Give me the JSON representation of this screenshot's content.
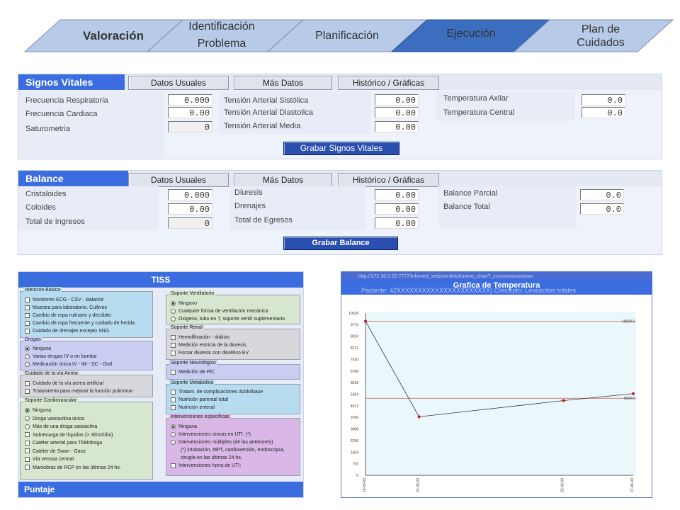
{
  "steps": [
    {
      "label": "Valoración",
      "bold": true
    },
    {
      "label": "Identificación\nProblema",
      "bold": false
    },
    {
      "label": "Planificación",
      "bold": false
    },
    {
      "label": "Ejecución",
      "bold": false
    },
    {
      "label": "Plan de\nCuidados",
      "bold": false
    }
  ],
  "signos": {
    "title": "Signos Vitales",
    "tabs": [
      "Datos Usuales",
      "Más Datos",
      "Histórico / Gráficas"
    ],
    "col1": [
      {
        "label": "Frecuencia Respiratoria",
        "value": "0.000"
      },
      {
        "label": "Frecuencia Cardiaca",
        "value": "0.00"
      },
      {
        "label": "Saturometria",
        "value": "0"
      }
    ],
    "col2": [
      {
        "label": "Tensión Arterial Sistólica",
        "value": "0.00"
      },
      {
        "label": "Tensión Arterial Diastolica",
        "value": "0.00"
      },
      {
        "label": "Tensión Arterial Media",
        "value": "0.00"
      }
    ],
    "col3": [
      {
        "label": "Temperatura Axilar",
        "value": "0.0"
      },
      {
        "label": "Temperatura Central",
        "value": "0.0"
      }
    ],
    "save": "Grabar Signos Vitales"
  },
  "balance": {
    "title": "Balance",
    "tabs": [
      "Datos Usuales",
      "Más Datos",
      "Histórico / Gráficas"
    ],
    "col1": [
      {
        "label": "Cristaloides",
        "value": "0.000"
      },
      {
        "label": "Coloides",
        "value": "0.00"
      },
      {
        "label": "Total de Ingresos",
        "value": "0"
      }
    ],
    "col2": [
      {
        "label": "Diuresis",
        "value": "0.00"
      },
      {
        "label": "Drenajes",
        "value": "0.00"
      },
      {
        "label": "Total de Egresos",
        "value": "0.00"
      }
    ],
    "col3": [
      {
        "label": "Balance Parcial",
        "value": "0.0"
      },
      {
        "label": "Balance Total",
        "value": "0.0"
      }
    ],
    "save_overlay": "Grabar Balance",
    "save_hidden": "Grabar Balance"
  },
  "tiss": {
    "title": "TISS",
    "footer": "Puntaje",
    "left_groups": [
      {
        "title": "Atención Básica",
        "color": "#b7dcef",
        "type": "check",
        "options": [
          "Monitoreo ECG - CSV - Balance",
          "Muestra para laboratorio. Cultivos",
          "Cambio de ropa rutinario y decúbito",
          "Cambio de ropa frecuente y cuidado de herida",
          "Cuidado de drenajes excepto SNG"
        ]
      },
      {
        "title": "Drogas",
        "color": "#c9cdf2",
        "type": "radio",
        "selected": 0,
        "options": [
          "Ninguna",
          "Varias drogas IV o en bomba",
          "Medicación única IV - IM - SC - Oral"
        ]
      },
      {
        "title": "Cuidado de la vía Aerea",
        "color": "#d8d8dc",
        "type": "check",
        "options": [
          "Cuidado de la vía aerea artificial",
          "Tratamiento para mejorar la función pulmonar"
        ]
      },
      {
        "title": "Soporte Cardiovascular",
        "color": "#d6e6cf",
        "type": "mixed",
        "selected": 0,
        "options": [
          "Ninguna",
          "Droga vasoactiva única",
          "Más de una droga vasoactiva",
          "Sobrecarga de líquidos (> 3l/m2/día)",
          "Catéter arterial para TAM/droga",
          "Catéter de Swan - Ganz",
          "Vía venosa central",
          "Maniobras de RCP en las últimas 24 hs."
        ]
      }
    ],
    "right_groups": [
      {
        "title": "Soporte Ventilatorio",
        "color": "#d6e6cf",
        "type": "radio",
        "selected": 0,
        "options": [
          "Ninguno",
          "Cualquier forma de ventilación mecánica",
          "Oxigeno, tubo en T, soporte ventil suplementario"
        ]
      },
      {
        "title": "Soporte Renal",
        "color": "#d8d8dc",
        "type": "check",
        "options": [
          "Hemofiltración - diálisis",
          "Medición estricta de la diuresis",
          "Forzar diuresis con diurético EV"
        ]
      },
      {
        "title": "Soporte Neurológico",
        "color": "#c9cdf2",
        "type": "check",
        "options": [
          "Medición de PIC"
        ]
      },
      {
        "title": "Soporte Metabolico",
        "color": "#b7dcef",
        "type": "check",
        "options": [
          "Tratam. de complicaciones ácido/base",
          "Nutrición parental total",
          "Nutrición enteral"
        ]
      },
      {
        "title": "Intervenciones específicas",
        "color": "#d9b8e8",
        "type": "mixed",
        "selected": 0,
        "options": [
          "Ninguna",
          "Intervenciones únicas en UTI: (*)",
          "Intervenciones múltiples (de las anteriores)",
          "(*) intubación, MPT, cardioversión, endoscopía,",
          "cirugía en las últimas 24 hs.",
          "Intervenciones fuera de UTI:"
        ]
      }
    ]
  },
  "chart_data": {
    "type": "line",
    "title": "Grafica de Temperatura",
    "url_text": "http://172.16.0.22:7777/infomed_web/servlet/alumno_chart?_xxxxxxxxxxxxxxxx",
    "subtitle": "Paciente: 42XXXXXXXXXXXXXXXXXXXXXX) Concepto: Leucocitos totales",
    "x": [
      "15-03-03",
      "24-03-03",
      "25-03-03",
      "27-04-03"
    ],
    "x_pos": [
      0,
      0.2,
      0.74,
      1.0
    ],
    "series": [
      {
        "values": [
          10000,
          3800,
          4850,
          5300
        ]
      }
    ],
    "reference_lines": [
      {
        "value": 10000,
        "label": "10000.0"
      },
      {
        "value": 5000,
        "label": "5000.0"
      }
    ],
    "y_ticks": [
      0,
      752,
      1504,
      2256,
      3008,
      3760,
      4512,
      5264,
      6016,
      6768,
      7520,
      8272,
      9024,
      9776,
      10528
    ],
    "ylim": [
      0,
      10528
    ],
    "grid": false
  }
}
